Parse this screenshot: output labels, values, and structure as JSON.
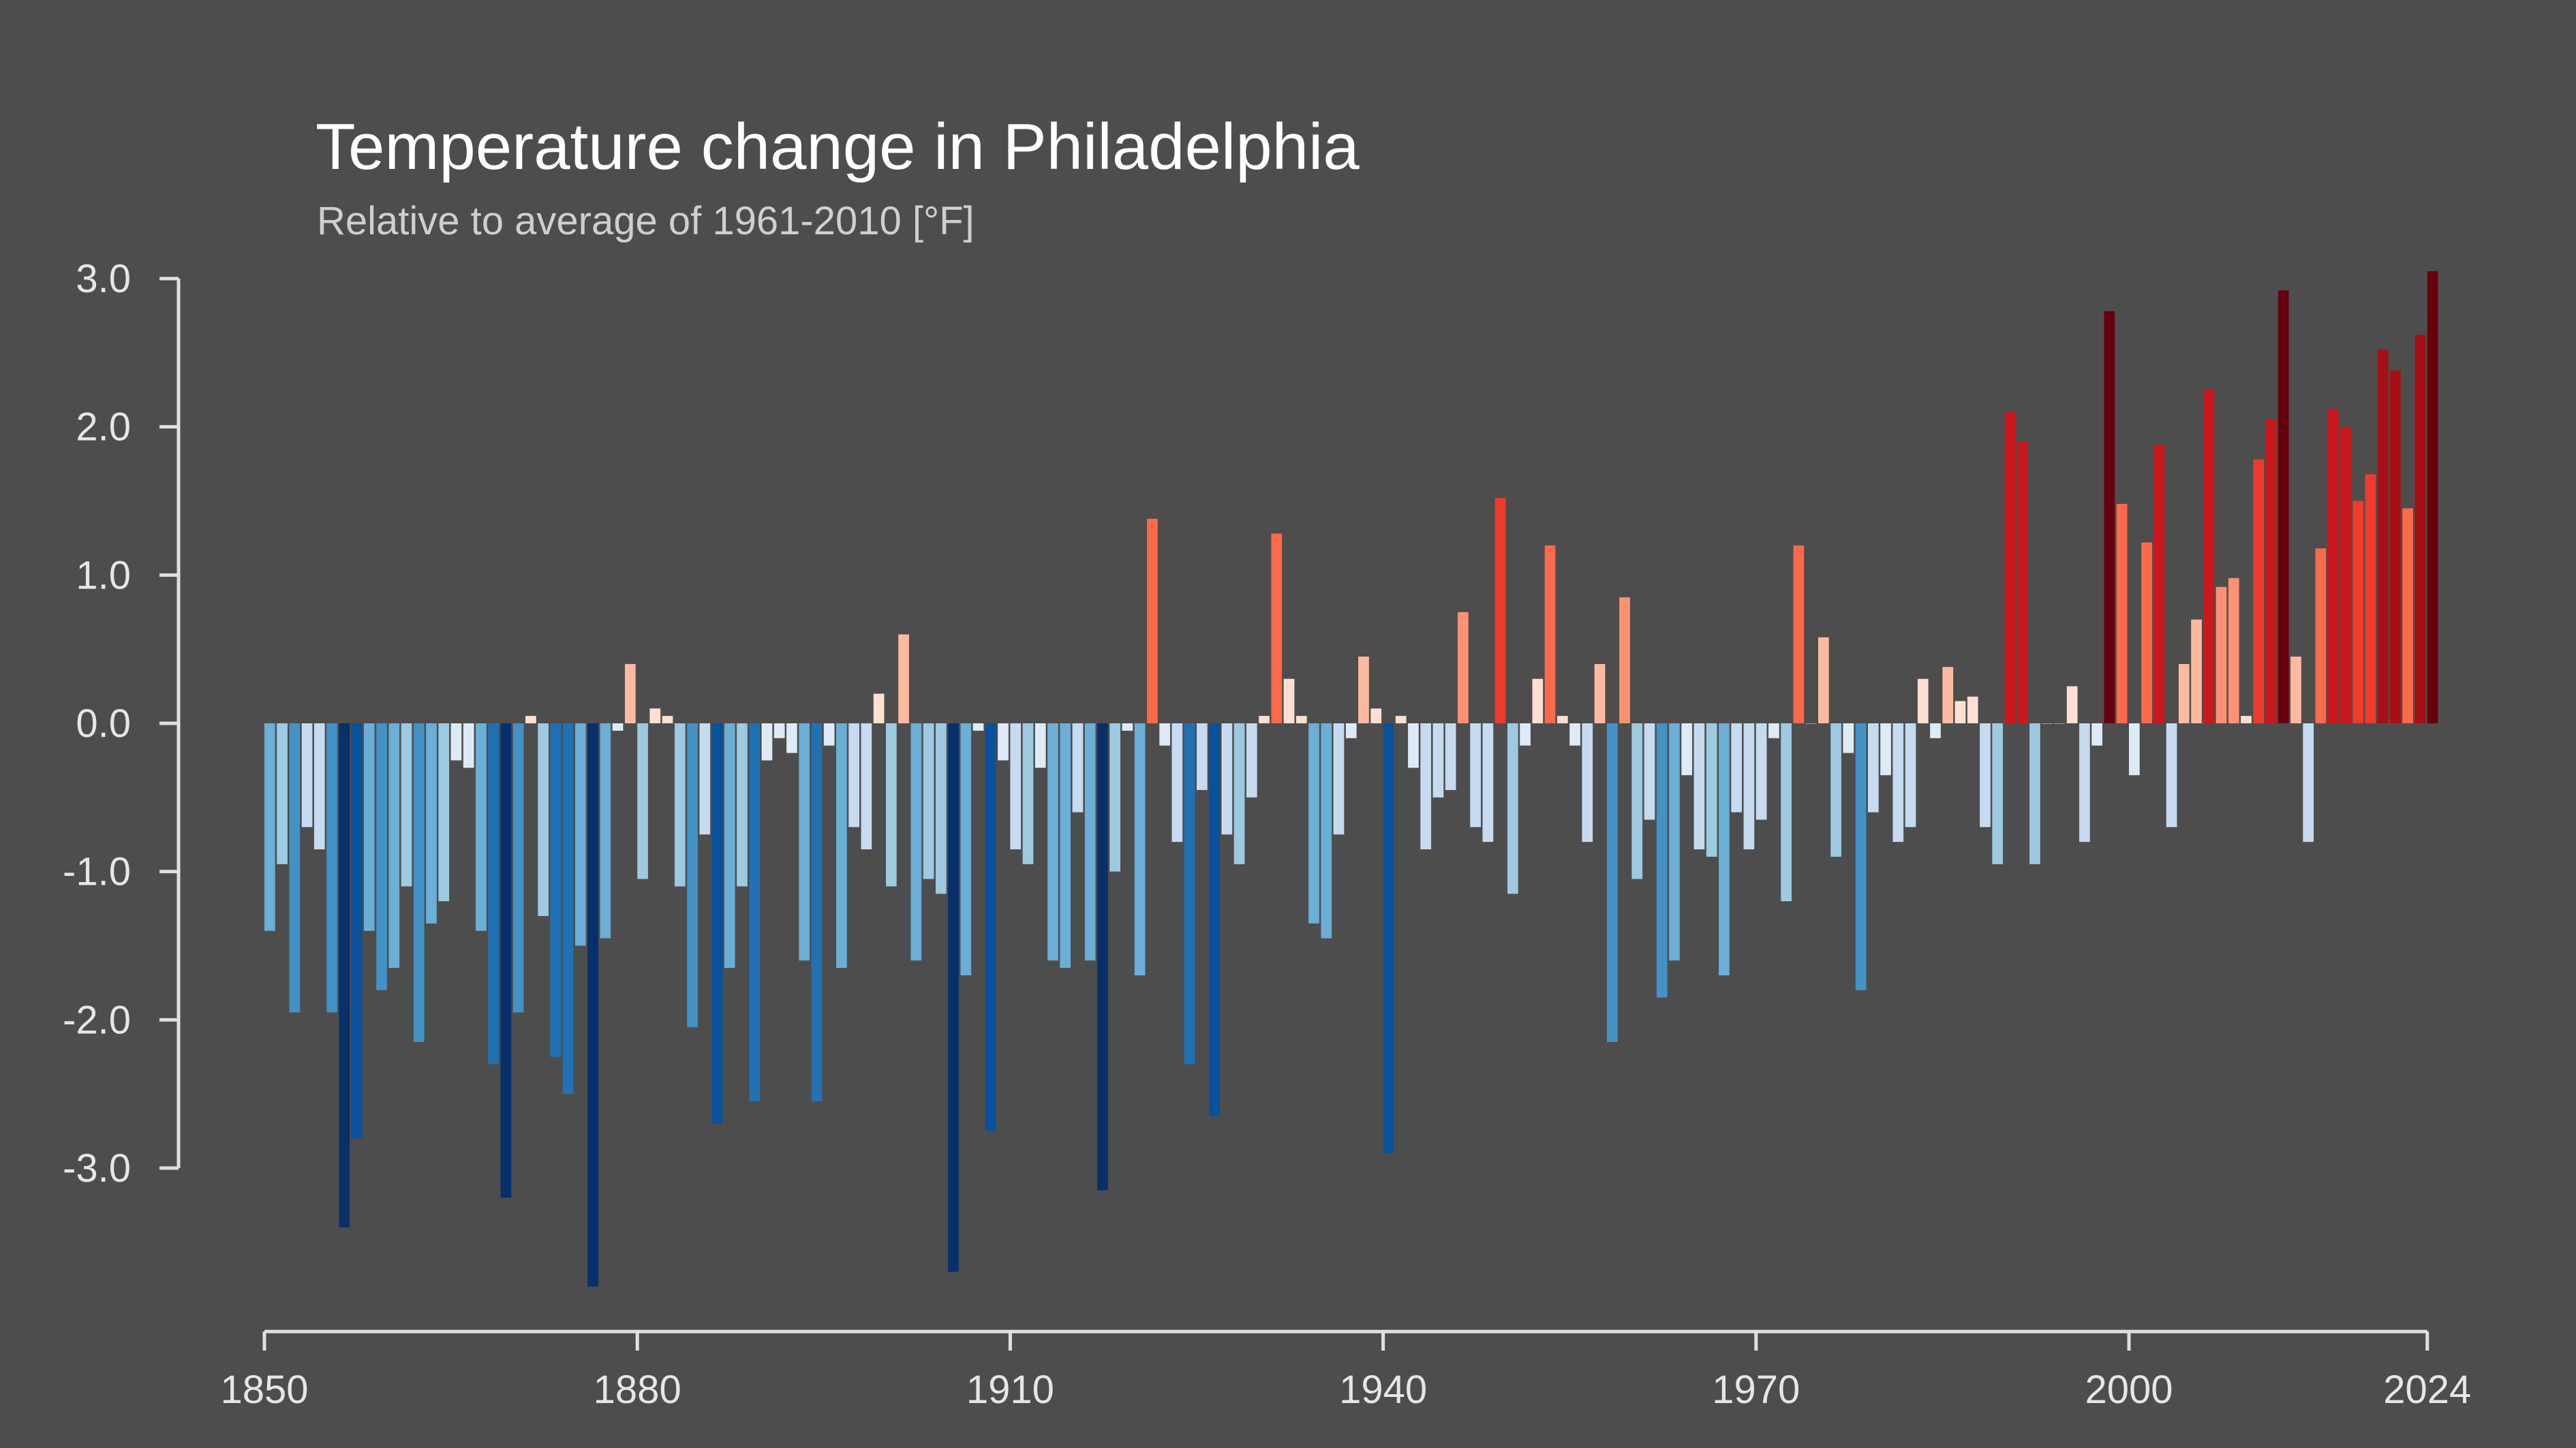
{
  "chart_data": {
    "type": "bar",
    "title": "Temperature change in Philadelphia",
    "subtitle": "Relative to average of 1961-2010  [°F]",
    "xlabel": "",
    "ylabel": "",
    "x_start": 1850,
    "x_end": 2024,
    "ylim": [
      -4.0,
      3.1
    ],
    "yticks": [
      3.0,
      2.0,
      1.0,
      0.0,
      -1.0,
      -2.0,
      -3.0
    ],
    "ytick_labels": [
      "3.0",
      "2.0",
      "1.0",
      "0.0",
      "-1.0",
      "-2.0",
      "-3.0"
    ],
    "xticks": [
      1850,
      1880,
      1910,
      1940,
      1970,
      2000,
      2024
    ],
    "xtick_labels": [
      "1850",
      "1880",
      "1910",
      "1940",
      "1970",
      "2000",
      "2024"
    ],
    "grid": false,
    "legend": "none",
    "color_scale": {
      "type": "diverging",
      "min": -3.5,
      "max": 3.0,
      "colors": [
        "#08306b",
        "#08519c",
        "#2171b5",
        "#4292c6",
        "#6baed6",
        "#9ecae1",
        "#c6dbef",
        "#deebf7",
        "#fee0d2",
        "#fcbba1",
        "#fc9272",
        "#fb6a4a",
        "#ef3b2c",
        "#cb181d",
        "#a50f15",
        "#67000d"
      ]
    },
    "values": [
      -1.4,
      -0.95,
      -1.95,
      -0.7,
      -0.85,
      -1.95,
      -3.4,
      -2.8,
      -1.4,
      -1.8,
      -1.65,
      -1.1,
      -2.15,
      -1.35,
      -1.2,
      -0.25,
      -0.3,
      -1.4,
      -2.3,
      -3.2,
      -1.95,
      0.05,
      -1.3,
      -2.25,
      -2.5,
      -1.5,
      -3.8,
      -1.45,
      -0.05,
      0.4,
      -1.05,
      0.1,
      0.05,
      -1.1,
      -2.05,
      -0.75,
      -2.7,
      -1.65,
      -1.1,
      -2.55,
      -0.25,
      -0.1,
      -0.2,
      -1.6,
      -2.55,
      -0.15,
      -1.65,
      -0.7,
      -0.85,
      0.2,
      -1.1,
      0.6,
      -1.6,
      -1.05,
      -1.15,
      -3.7,
      -1.7,
      -0.05,
      -2.75,
      -0.25,
      -0.85,
      -0.95,
      -0.3,
      -1.6,
      -1.65,
      -0.6,
      -1.6,
      -3.15,
      -1.0,
      -0.05,
      -1.7,
      1.38,
      -0.15,
      -0.8,
      -2.3,
      -0.45,
      -2.65,
      -0.75,
      -0.95,
      -0.5,
      0.05,
      1.28,
      0.3,
      0.05,
      -1.35,
      -1.45,
      -0.75,
      -0.1,
      0.45,
      0.1,
      -2.9,
      0.05,
      -0.3,
      -0.85,
      -0.5,
      -0.45,
      0.75,
      -0.7,
      -0.8,
      1.52,
      -1.15,
      -0.15,
      0.3,
      1.2,
      0.05,
      -0.15,
      -0.8,
      0.4,
      -2.15,
      0.85,
      -1.05,
      -0.65,
      -1.85,
      -1.6,
      -0.35,
      -0.85,
      -0.9,
      -1.7,
      -0.6,
      -0.85,
      -0.65,
      -0.1,
      -1.2,
      1.2,
      0.0,
      0.58,
      -0.9,
      -0.2,
      -1.8,
      -0.6,
      -0.35,
      -0.8,
      -0.7,
      0.3,
      -0.1,
      0.38,
      0.15,
      0.18,
      -0.7,
      -0.95,
      2.1,
      1.9,
      -0.95,
      0.0,
      0.0,
      0.25,
      -0.8,
      -0.15,
      2.78,
      1.48,
      -0.35,
      1.22,
      1.88,
      -0.7,
      0.4,
      0.7,
      2.25,
      0.92,
      0.98,
      0.05,
      1.78,
      2.05,
      2.92,
      0.45,
      -0.8,
      1.18,
      2.12,
      2.0,
      1.5,
      1.68,
      2.52,
      2.38,
      1.45,
      2.62,
      3.05
    ]
  }
}
